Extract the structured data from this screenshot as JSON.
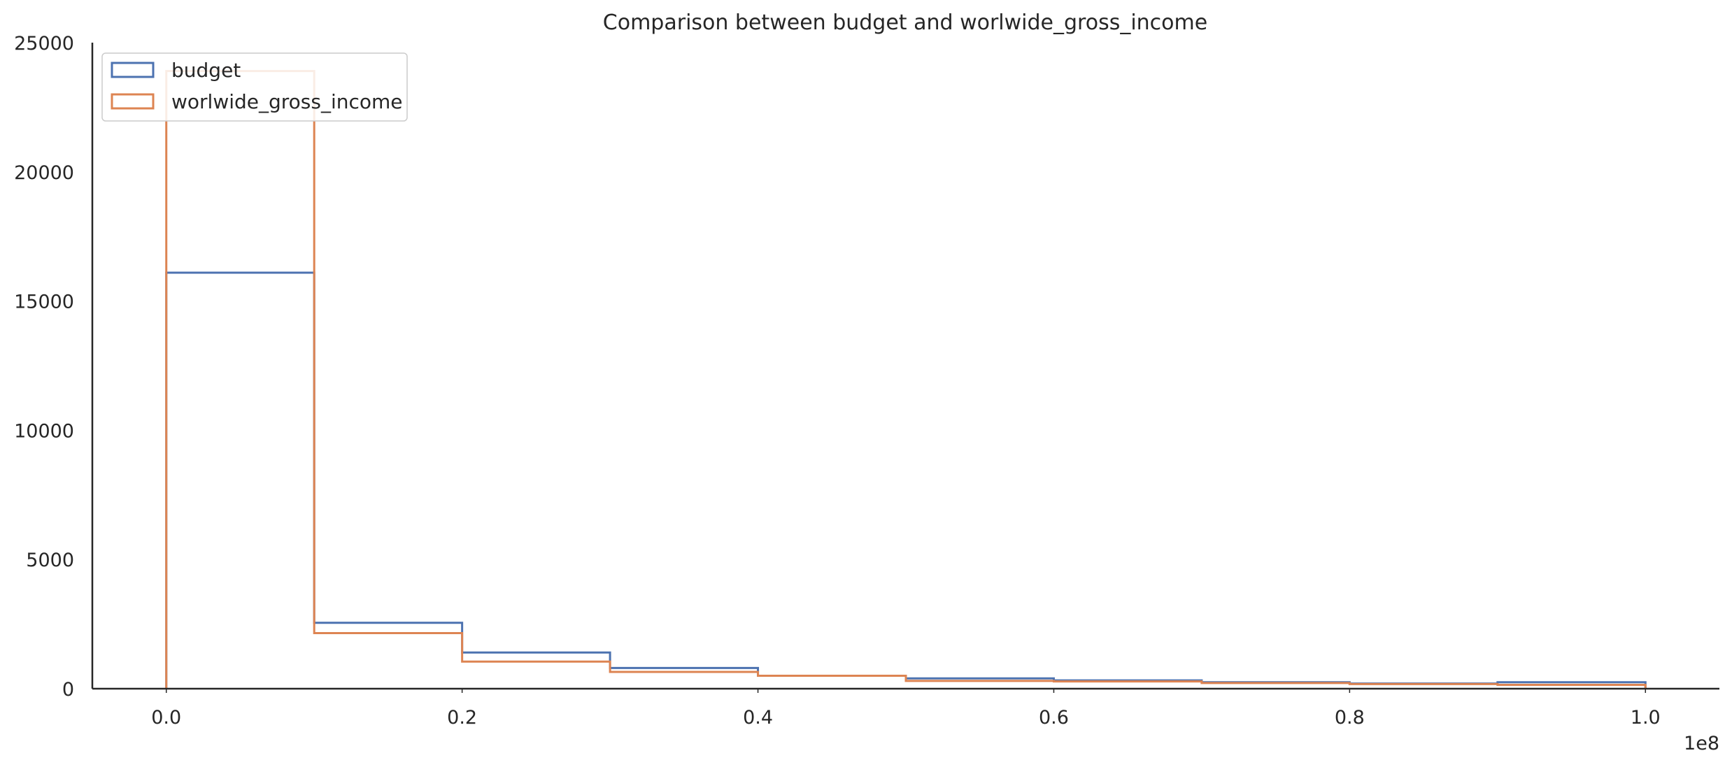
{
  "chart_data": {
    "type": "histogram",
    "title": "Comparison between budget and worlwide_gross_income",
    "xlabel": "",
    "ylabel": "",
    "x_offset_label": "1e8",
    "xlim": [
      -0.05,
      1.05
    ],
    "ylim": [
      0,
      25000
    ],
    "x_ticks": [
      0.0,
      0.2,
      0.4,
      0.6,
      0.8,
      1.0
    ],
    "x_tick_labels": [
      "0.0",
      "0.2",
      "0.4",
      "0.6",
      "0.8",
      "1.0"
    ],
    "y_ticks": [
      0,
      5000,
      10000,
      15000,
      20000,
      25000
    ],
    "y_tick_labels": [
      "0",
      "5000",
      "10000",
      "15000",
      "20000",
      "25000"
    ],
    "bin_edges": [
      0.0,
      0.1,
      0.2,
      0.3,
      0.4,
      0.5,
      0.6,
      0.7,
      0.8,
      0.9,
      1.0
    ],
    "histtype": "step",
    "grid": false,
    "legend_position": "top-left",
    "series": [
      {
        "name": "budget",
        "color": "#4c72b0",
        "values": [
          16100,
          2550,
          1400,
          800,
          500,
          400,
          320,
          250,
          200,
          250
        ]
      },
      {
        "name": "worlwide_gross_income",
        "color": "#dd8452",
        "values": [
          23900,
          2150,
          1050,
          650,
          500,
          300,
          280,
          220,
          180,
          150
        ]
      }
    ]
  }
}
